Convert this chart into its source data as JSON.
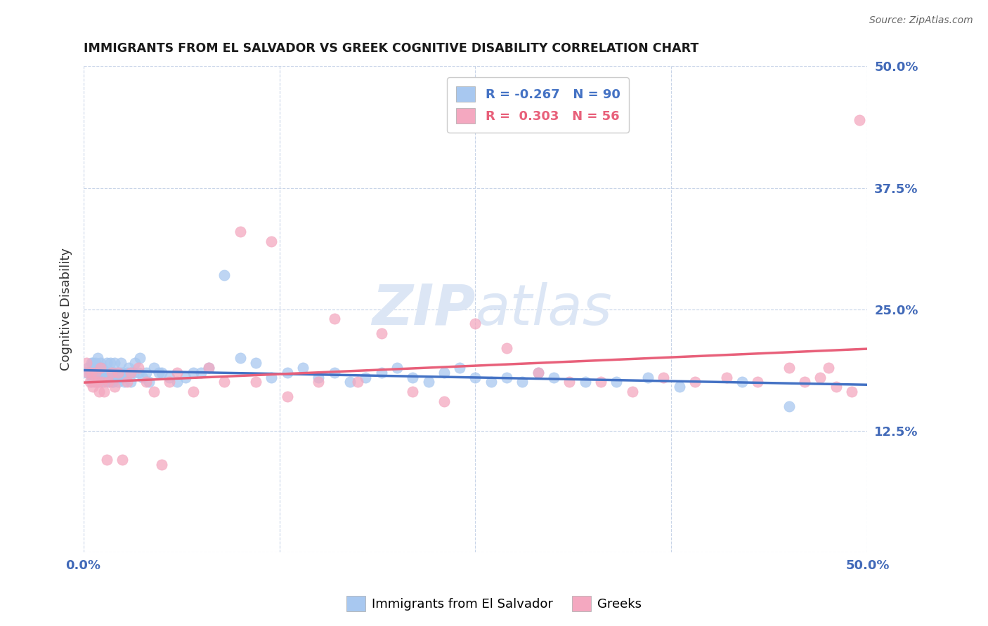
{
  "title": "IMMIGRANTS FROM EL SALVADOR VS GREEK COGNITIVE DISABILITY CORRELATION CHART",
  "source": "Source: ZipAtlas.com",
  "ylabel": "Cognitive Disability",
  "xlim": [
    0.0,
    0.5
  ],
  "ylim": [
    0.0,
    0.5
  ],
  "blue_R": -0.267,
  "blue_N": 90,
  "pink_R": 0.303,
  "pink_N": 56,
  "blue_color": "#A8C8F0",
  "pink_color": "#F4A8C0",
  "blue_line_color": "#4472C4",
  "pink_line_color": "#E8607A",
  "axis_label_color": "#4169b8",
  "grid_color": "#c8d4e8",
  "watermark_color": "#dce6f5",
  "legend_label_blue": "Immigrants from El Salvador",
  "legend_label_pink": "Greeks",
  "background_color": "#ffffff",
  "blue_scatter_x": [
    0.002,
    0.003,
    0.004,
    0.005,
    0.005,
    0.006,
    0.006,
    0.007,
    0.007,
    0.008,
    0.008,
    0.009,
    0.009,
    0.01,
    0.01,
    0.011,
    0.011,
    0.012,
    0.012,
    0.013,
    0.013,
    0.014,
    0.015,
    0.015,
    0.016,
    0.016,
    0.017,
    0.017,
    0.018,
    0.018,
    0.019,
    0.019,
    0.02,
    0.02,
    0.021,
    0.022,
    0.023,
    0.024,
    0.025,
    0.025,
    0.026,
    0.027,
    0.028,
    0.029,
    0.03,
    0.03,
    0.032,
    0.033,
    0.035,
    0.036,
    0.038,
    0.04,
    0.042,
    0.045,
    0.048,
    0.05,
    0.055,
    0.06,
    0.065,
    0.07,
    0.075,
    0.08,
    0.09,
    0.1,
    0.11,
    0.12,
    0.13,
    0.14,
    0.15,
    0.16,
    0.17,
    0.18,
    0.19,
    0.2,
    0.21,
    0.22,
    0.23,
    0.24,
    0.25,
    0.26,
    0.27,
    0.28,
    0.29,
    0.3,
    0.32,
    0.34,
    0.36,
    0.38,
    0.42,
    0.45
  ],
  "blue_scatter_y": [
    0.185,
    0.19,
    0.185,
    0.195,
    0.175,
    0.195,
    0.18,
    0.185,
    0.19,
    0.195,
    0.175,
    0.185,
    0.2,
    0.185,
    0.175,
    0.195,
    0.18,
    0.185,
    0.19,
    0.185,
    0.175,
    0.185,
    0.195,
    0.18,
    0.185,
    0.175,
    0.195,
    0.18,
    0.185,
    0.175,
    0.185,
    0.175,
    0.185,
    0.195,
    0.18,
    0.175,
    0.185,
    0.195,
    0.18,
    0.185,
    0.175,
    0.18,
    0.185,
    0.19,
    0.185,
    0.175,
    0.185,
    0.195,
    0.185,
    0.2,
    0.18,
    0.185,
    0.175,
    0.19,
    0.185,
    0.185,
    0.18,
    0.175,
    0.18,
    0.185,
    0.185,
    0.19,
    0.285,
    0.2,
    0.195,
    0.18,
    0.185,
    0.19,
    0.18,
    0.185,
    0.175,
    0.18,
    0.185,
    0.19,
    0.18,
    0.175,
    0.185,
    0.19,
    0.18,
    0.175,
    0.18,
    0.175,
    0.185,
    0.18,
    0.175,
    0.175,
    0.18,
    0.17,
    0.175,
    0.15
  ],
  "pink_scatter_x": [
    0.002,
    0.003,
    0.004,
    0.005,
    0.006,
    0.007,
    0.008,
    0.009,
    0.01,
    0.011,
    0.012,
    0.013,
    0.015,
    0.016,
    0.018,
    0.02,
    0.022,
    0.025,
    0.028,
    0.03,
    0.035,
    0.04,
    0.045,
    0.05,
    0.055,
    0.06,
    0.07,
    0.08,
    0.09,
    0.1,
    0.11,
    0.12,
    0.13,
    0.15,
    0.16,
    0.175,
    0.19,
    0.21,
    0.23,
    0.25,
    0.27,
    0.29,
    0.31,
    0.33,
    0.35,
    0.37,
    0.39,
    0.41,
    0.43,
    0.45,
    0.46,
    0.47,
    0.475,
    0.48,
    0.49,
    0.495
  ],
  "pink_scatter_y": [
    0.195,
    0.185,
    0.175,
    0.185,
    0.17,
    0.175,
    0.185,
    0.175,
    0.165,
    0.19,
    0.175,
    0.165,
    0.095,
    0.175,
    0.185,
    0.17,
    0.185,
    0.095,
    0.175,
    0.185,
    0.19,
    0.175,
    0.165,
    0.09,
    0.175,
    0.185,
    0.165,
    0.19,
    0.175,
    0.33,
    0.175,
    0.32,
    0.16,
    0.175,
    0.24,
    0.175,
    0.225,
    0.165,
    0.155,
    0.235,
    0.21,
    0.185,
    0.175,
    0.175,
    0.165,
    0.18,
    0.175,
    0.18,
    0.175,
    0.19,
    0.175,
    0.18,
    0.19,
    0.17,
    0.165,
    0.445
  ]
}
